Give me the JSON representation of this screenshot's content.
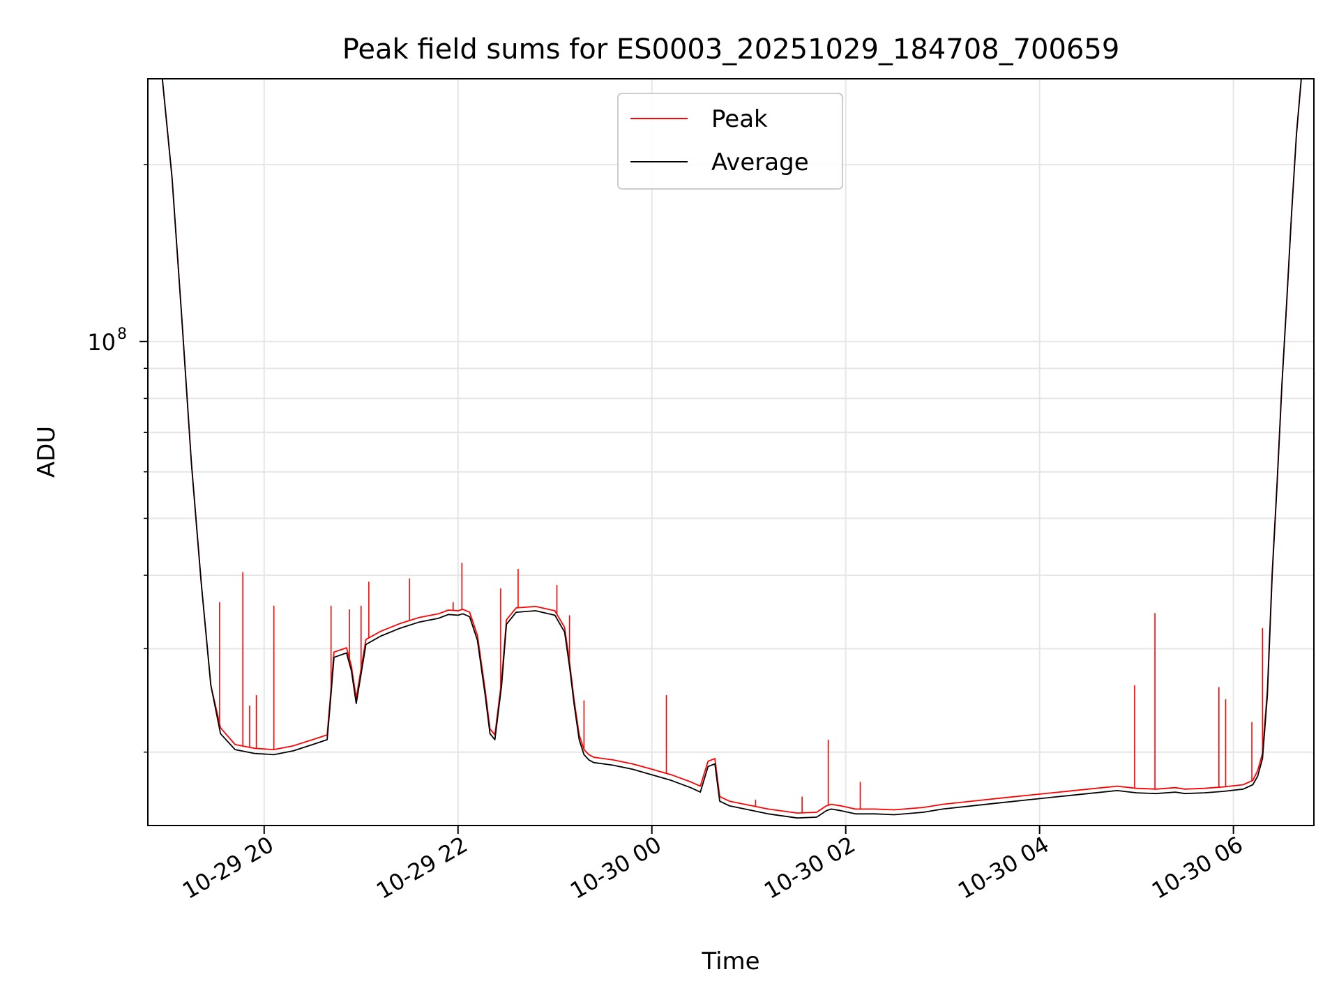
{
  "chart_data": {
    "type": "line",
    "title": "Peak field sums for ES0003_20251029_184708_700659",
    "xlabel": "Time",
    "ylabel": "ADU",
    "yscale": "log",
    "grid": true,
    "legend_position": "top-center",
    "x_unit": "hours since 10-29 00:00",
    "xlim": [
      18.8,
      30.83
    ],
    "ylim": [
      15000000,
      280000000
    ],
    "x_ticks": [
      {
        "value": 20,
        "label": "10-29 20"
      },
      {
        "value": 22,
        "label": "10-29 22"
      },
      {
        "value": 24,
        "label": "10-30 00"
      },
      {
        "value": 26,
        "label": "10-30 02"
      },
      {
        "value": 28,
        "label": "10-30 04"
      },
      {
        "value": 30,
        "label": "10-30 06"
      }
    ],
    "y_ticks": [
      {
        "value": 100000000,
        "base": "10",
        "exponent": "8"
      }
    ],
    "y_minor_ticks": [
      20000000,
      30000000,
      40000000,
      50000000,
      60000000,
      70000000,
      80000000,
      90000000,
      200000000
    ],
    "series": [
      {
        "name": "Average",
        "color": "#000000",
        "x": [
          18.8,
          18.95,
          19.05,
          19.15,
          19.25,
          19.35,
          19.45,
          19.55,
          19.7,
          19.9,
          20.1,
          20.3,
          20.5,
          20.65,
          20.68,
          20.72,
          20.85,
          20.9,
          20.95,
          21.05,
          21.2,
          21.4,
          21.6,
          21.8,
          21.9,
          22.0,
          22.05,
          22.12,
          22.2,
          22.28,
          22.33,
          22.38,
          22.45,
          22.5,
          22.6,
          22.8,
          23.0,
          23.1,
          23.15,
          23.2,
          23.25,
          23.3,
          23.35,
          23.4,
          23.6,
          23.8,
          24.0,
          24.2,
          24.4,
          24.5,
          24.58,
          24.65,
          24.7,
          24.8,
          25.0,
          25.2,
          25.5,
          25.7,
          25.8,
          25.85,
          25.95,
          26.1,
          26.3,
          26.5,
          26.8,
          27.0,
          27.3,
          27.6,
          27.9,
          28.2,
          28.5,
          28.8,
          29.0,
          29.2,
          29.4,
          29.5,
          29.7,
          29.9,
          30.1,
          30.2,
          30.25,
          30.3,
          30.35,
          30.4,
          30.45,
          30.5,
          30.55,
          30.6,
          30.65,
          30.7,
          30.75,
          30.83
        ],
        "y": [
          280000000,
          280000000,
          190000000,
          110000000,
          62000000,
          39000000,
          26000000,
          21500000,
          20200000,
          19900000,
          19800000,
          20100000,
          20600000,
          21000000,
          24000000,
          29000000,
          29500000,
          27500000,
          24200000,
          30500000,
          31500000,
          32500000,
          33300000,
          33800000,
          34300000,
          34200000,
          34400000,
          34000000,
          31000000,
          25000000,
          21500000,
          21000000,
          26000000,
          33000000,
          34600000,
          34800000,
          34200000,
          32000000,
          28000000,
          24000000,
          21000000,
          19800000,
          19400000,
          19200000,
          19000000,
          18700000,
          18300000,
          17900000,
          17400000,
          17100000,
          18900000,
          19100000,
          16500000,
          16200000,
          15950000,
          15700000,
          15450000,
          15500000,
          15900000,
          16000000,
          15900000,
          15700000,
          15700000,
          15650000,
          15800000,
          16000000,
          16200000,
          16400000,
          16600000,
          16800000,
          17000000,
          17200000,
          17050000,
          17000000,
          17100000,
          17000000,
          17050000,
          17150000,
          17300000,
          17600000,
          18200000,
          19500000,
          25000000,
          40000000,
          57000000,
          84000000,
          117000000,
          165000000,
          225000000,
          280000000,
          280000000,
          280000000
        ]
      },
      {
        "name": "Peak",
        "color": "#ff0000",
        "x": [
          18.8,
          18.95,
          19.05,
          19.15,
          19.25,
          19.35,
          19.45,
          19.55,
          19.7,
          19.9,
          20.1,
          20.3,
          20.5,
          20.65,
          20.68,
          20.72,
          20.85,
          20.9,
          20.95,
          21.05,
          21.2,
          21.4,
          21.6,
          21.8,
          21.9,
          22.0,
          22.05,
          22.12,
          22.2,
          22.28,
          22.33,
          22.38,
          22.45,
          22.5,
          22.6,
          22.8,
          23.0,
          23.1,
          23.15,
          23.2,
          23.25,
          23.3,
          23.35,
          23.4,
          23.6,
          23.8,
          24.0,
          24.2,
          24.4,
          24.5,
          24.58,
          24.65,
          24.7,
          24.8,
          25.0,
          25.2,
          25.5,
          25.7,
          25.8,
          25.85,
          25.95,
          26.1,
          26.3,
          26.5,
          26.8,
          27.0,
          27.3,
          27.6,
          27.9,
          28.2,
          28.5,
          28.8,
          29.0,
          29.2,
          29.4,
          29.5,
          29.7,
          29.9,
          30.1,
          30.2,
          30.25,
          30.3,
          30.35,
          30.4,
          30.45,
          30.5,
          30.55,
          30.6,
          30.65,
          30.7,
          30.75,
          30.83
        ],
        "y": [
          280000000,
          280000000,
          190000000,
          110000000,
          62000000,
          39000000,
          26000000,
          22000000,
          20600000,
          20300000,
          20200000,
          20500000,
          21000000,
          21400000,
          24500000,
          29600000,
          30100000,
          28000000,
          24700000,
          31100000,
          32100000,
          33100000,
          33900000,
          34400000,
          34900000,
          34800000,
          35000000,
          34600000,
          31600000,
          25500000,
          21900000,
          21400000,
          26500000,
          33600000,
          35200000,
          35400000,
          34800000,
          32600000,
          28500000,
          24400000,
          21400000,
          20200000,
          19800000,
          19600000,
          19400000,
          19100000,
          18700000,
          18300000,
          17800000,
          17500000,
          19300000,
          19500000,
          16800000,
          16500000,
          16250000,
          16000000,
          15750000,
          15800000,
          16200000,
          16300000,
          16200000,
          16000000,
          16000000,
          15950000,
          16100000,
          16300000,
          16500000,
          16700000,
          16900000,
          17100000,
          17300000,
          17500000,
          17350000,
          17300000,
          17400000,
          17300000,
          17350000,
          17450000,
          17600000,
          17900000,
          18600000,
          19900000,
          25500000,
          40500000,
          57500000,
          84500000,
          117500000,
          165500000,
          225500000,
          280000000,
          280000000,
          280000000
        ]
      }
    ],
    "peak_spikes": [
      {
        "x": 19.54,
        "y": 36000000
      },
      {
        "x": 19.78,
        "y": 40500000
      },
      {
        "x": 19.85,
        "y": 24000000
      },
      {
        "x": 19.92,
        "y": 25000000
      },
      {
        "x": 20.1,
        "y": 35500000
      },
      {
        "x": 20.69,
        "y": 35500000
      },
      {
        "x": 20.88,
        "y": 35000000
      },
      {
        "x": 21.0,
        "y": 35500000
      },
      {
        "x": 21.08,
        "y": 39000000
      },
      {
        "x": 21.5,
        "y": 39500000
      },
      {
        "x": 21.95,
        "y": 36000000
      },
      {
        "x": 22.04,
        "y": 42000000
      },
      {
        "x": 22.44,
        "y": 38000000
      },
      {
        "x": 22.62,
        "y": 41000000
      },
      {
        "x": 23.02,
        "y": 38500000
      },
      {
        "x": 23.15,
        "y": 34200000
      },
      {
        "x": 23.3,
        "y": 24500000
      },
      {
        "x": 24.15,
        "y": 25000000
      },
      {
        "x": 25.07,
        "y": 16600000
      },
      {
        "x": 25.55,
        "y": 16800000
      },
      {
        "x": 25.82,
        "y": 21000000
      },
      {
        "x": 26.15,
        "y": 17800000
      },
      {
        "x": 28.98,
        "y": 26000000
      },
      {
        "x": 29.19,
        "y": 34500000
      },
      {
        "x": 29.85,
        "y": 25800000
      },
      {
        "x": 29.92,
        "y": 24600000
      },
      {
        "x": 30.19,
        "y": 22500000
      },
      {
        "x": 30.3,
        "y": 32500000
      }
    ]
  }
}
